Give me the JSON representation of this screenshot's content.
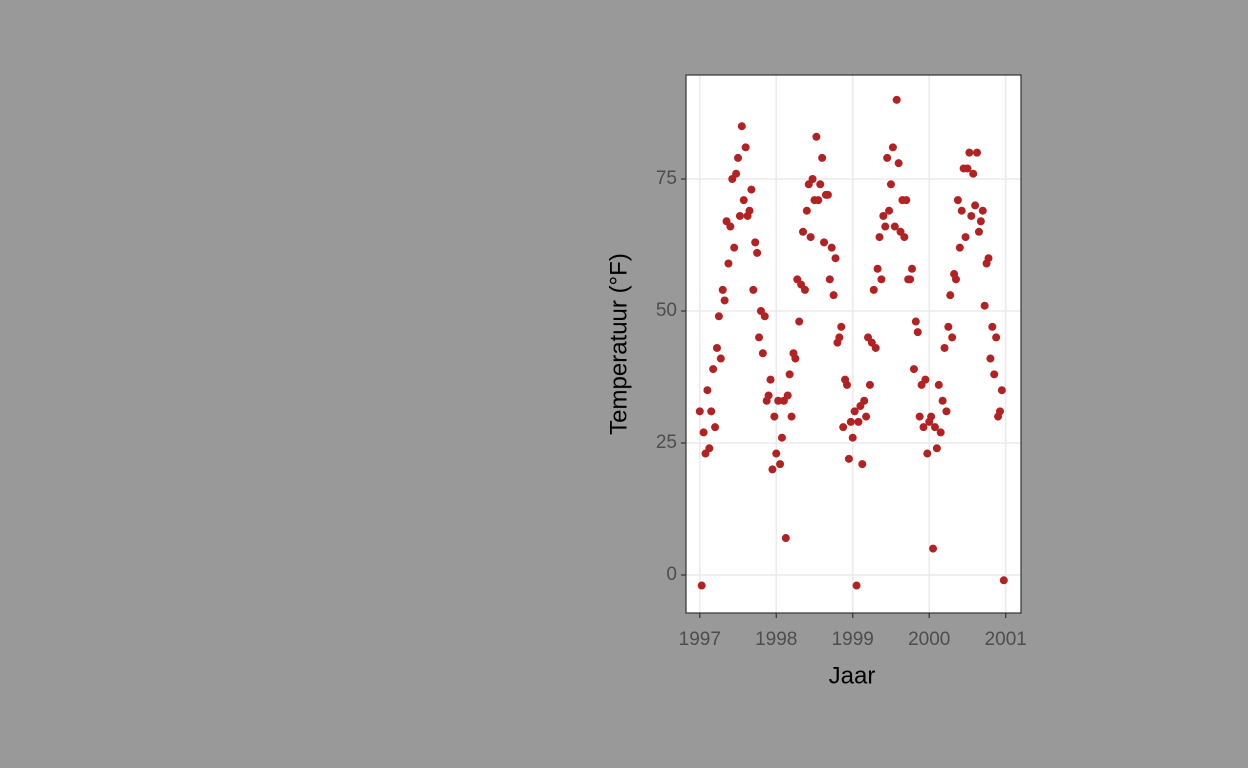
{
  "chart_data": {
    "type": "scatter",
    "x_label": "Jaar",
    "y_label": "Temperatuur (°F)",
    "color": "#b22222",
    "grid": true,
    "xlim": [
      1996.82,
      2001.2
    ],
    "xticks": [
      1997,
      1998,
      1999,
      2000,
      2001
    ],
    "ylim": [
      -7.2,
      94.7
    ],
    "yticks": [
      0,
      25,
      50,
      75
    ],
    "x": [
      1997,
      1997.025,
      1997.05,
      1997.075,
      1997.1,
      1997.125,
      1997.15,
      1997.175,
      1997.2,
      1997.225,
      1997.25,
      1997.275,
      1997.3,
      1997.325,
      1997.35,
      1997.375,
      1997.4,
      1997.425,
      1997.45,
      1997.475,
      1997.5,
      1997.525,
      1997.55,
      1997.575,
      1997.6,
      1997.625,
      1997.65,
      1997.675,
      1997.7,
      1997.725,
      1997.75,
      1997.775,
      1997.8,
      1997.825,
      1997.85,
      1997.875,
      1997.9,
      1997.925,
      1997.95,
      1997.975,
      1998,
      1998.025,
      1998.05,
      1998.075,
      1998.1,
      1998.125,
      1998.15,
      1998.175,
      1998.2,
      1998.225,
      1998.25,
      1998.275,
      1998.3,
      1998.325,
      1998.35,
      1998.375,
      1998.4,
      1998.425,
      1998.45,
      1998.475,
      1998.5,
      1998.525,
      1998.55,
      1998.575,
      1998.6,
      1998.625,
      1998.65,
      1998.675,
      1998.7,
      1998.725,
      1998.75,
      1998.775,
      1998.8,
      1998.825,
      1998.85,
      1998.875,
      1998.9,
      1998.925,
      1998.95,
      1998.975,
      1999,
      1999.025,
      1999.05,
      1999.075,
      1999.1,
      1999.125,
      1999.15,
      1999.175,
      1999.2,
      1999.225,
      1999.25,
      1999.275,
      1999.3,
      1999.325,
      1999.35,
      1999.375,
      1999.4,
      1999.425,
      1999.45,
      1999.475,
      1999.5,
      1999.525,
      1999.55,
      1999.575,
      1999.6,
      1999.625,
      1999.65,
      1999.675,
      1999.7,
      1999.725,
      1999.75,
      1999.775,
      1999.8,
      1999.825,
      1999.85,
      1999.875,
      1999.9,
      1999.925,
      1999.95,
      1999.975,
      2000,
      2000.025,
      2000.05,
      2000.075,
      2000.1,
      2000.125,
      2000.15,
      2000.175,
      2000.2,
      2000.225,
      2000.25,
      2000.275,
      2000.3,
      2000.325,
      2000.35,
      2000.375,
      2000.4,
      2000.425,
      2000.45,
      2000.475,
      2000.5,
      2000.525,
      2000.55,
      2000.575,
      2000.6,
      2000.625,
      2000.65,
      2000.675,
      2000.7,
      2000.725,
      2000.75,
      2000.775,
      2000.8,
      2000.825,
      2000.85,
      2000.875,
      2000.9,
      2000.925,
      2000.95,
      2000.975
    ],
    "values": [
      31,
      -2,
      27,
      23,
      35,
      24,
      31,
      39,
      28,
      43,
      49,
      41,
      54,
      52,
      67,
      59,
      66,
      75,
      62,
      76,
      79,
      68,
      85,
      71,
      81,
      68,
      69,
      73,
      54,
      63,
      61,
      45,
      50,
      42,
      49,
      33,
      34,
      37,
      20,
      30,
      23,
      33,
      21,
      26,
      33,
      7,
      34,
      38,
      30,
      42,
      41,
      56,
      48,
      55,
      65,
      54,
      69,
      74,
      64,
      75,
      71,
      83,
      71,
      74,
      79,
      63,
      72,
      72,
      56,
      62,
      53,
      60,
      44,
      45,
      47,
      28,
      37,
      36,
      22,
      29,
      26,
      31,
      -2,
      29,
      32,
      21,
      33,
      30,
      45,
      36,
      44,
      54,
      43,
      58,
      64,
      56,
      68,
      66,
      79,
      69,
      74,
      81,
      66,
      90,
      78,
      65,
      71,
      64,
      71,
      56,
      56,
      58,
      39,
      48,
      46,
      30,
      36,
      28,
      37,
      23,
      29,
      30,
      5,
      28,
      24,
      36,
      27,
      33,
      43,
      31,
      47,
      53,
      45,
      57,
      56,
      71,
      62,
      69,
      77,
      64,
      77,
      80,
      68,
      76,
      70,
      80,
      65,
      67,
      69,
      51,
      59,
      60,
      41,
      47,
      38,
      45,
      30,
      31,
      35,
      -1
    ]
  }
}
